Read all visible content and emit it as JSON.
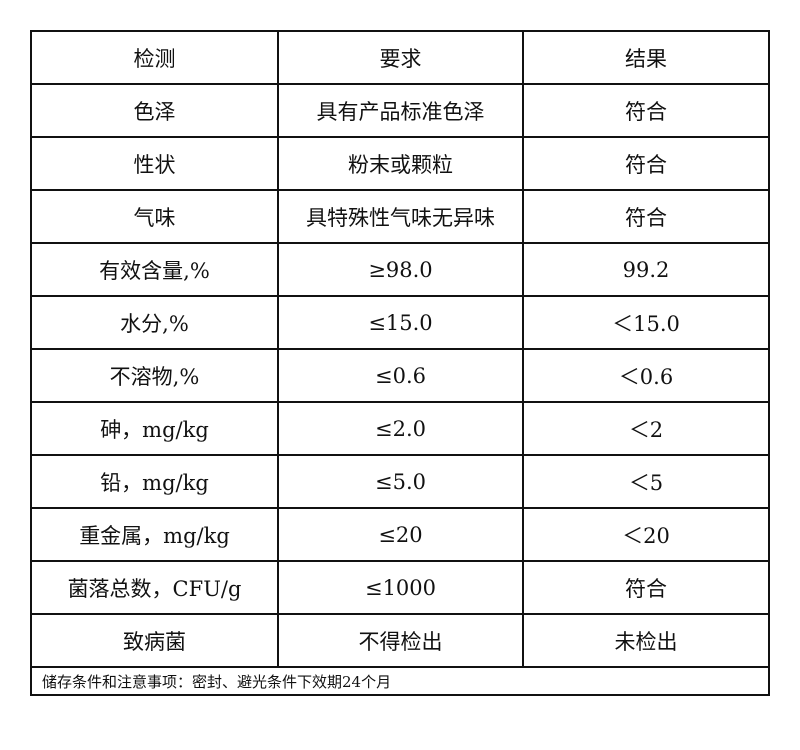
{
  "headers": [
    "检测",
    "要求",
    "结果"
  ],
  "rows": [
    [
      "色泽",
      "具有产品标准色泽",
      "符合"
    ],
    [
      "性状",
      "粉末或颗粒",
      "符合"
    ],
    [
      "气味",
      "具特殊性气味无异味",
      "符合"
    ],
    [
      "有效含量,%",
      "≥98.0",
      "99.2"
    ],
    [
      "水分,%",
      "≤15.0",
      "＜15.0"
    ],
    [
      "不溶物,%",
      "≤0.6",
      "＜0.6"
    ],
    [
      "砷，mg/kg",
      "≤2.0",
      "＜2"
    ],
    [
      "铅，mg/kg",
      "≤5.0",
      "＜5"
    ],
    [
      "重金属，mg/kg",
      "≤20",
      "＜20"
    ],
    [
      "菌落总数，CFU/g",
      "≤1000",
      "符合"
    ],
    [
      "致病菌",
      "不得检出",
      "未检出"
    ]
  ],
  "footer": "储存条件和注意事项：密封、避光条件下效期24个月"
}
